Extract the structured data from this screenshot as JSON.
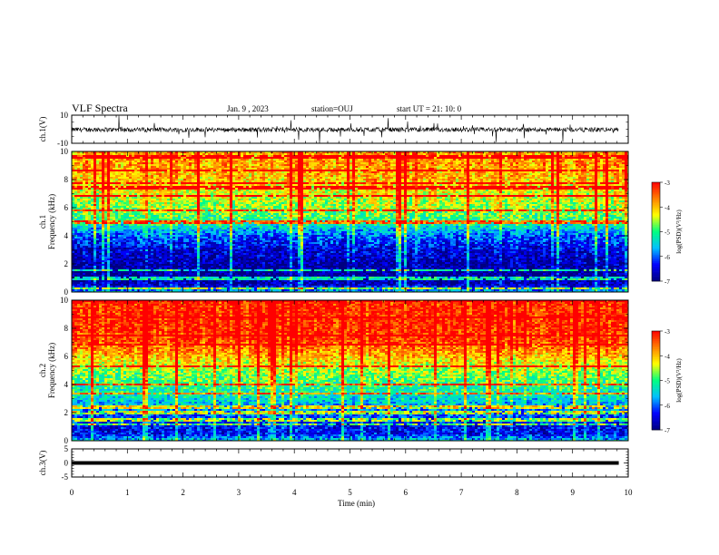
{
  "header": {
    "title": "VLF Spectra",
    "date": "Jan. 9 , 2023",
    "station": "station=OUJ",
    "start": "start UT = 21: 10: 0"
  },
  "colors": {
    "colormap": [
      "#000080",
      "#0000ff",
      "#00c0ff",
      "#00ff80",
      "#ffff00",
      "#ff8000",
      "#ff0000",
      "#ffffff"
    ],
    "waveform": "#000000",
    "frame": "#000000"
  },
  "chart_data": [
    {
      "type": "line",
      "name": "ch1-waveform",
      "ylabel": "ch.1(V)",
      "ylim": [
        -10,
        10
      ],
      "ytick_labels": [
        "10",
        "-10"
      ],
      "x_range_min": [
        0,
        9.83
      ],
      "baseline_volts": 0
    },
    {
      "type": "heatmap",
      "name": "ch1-spectrogram",
      "ylabel_channel": "ch.1",
      "ylabel": "Frequency (kHz)",
      "xlim": [
        0,
        10
      ],
      "ylim": [
        0,
        10
      ],
      "ytick_labels": [
        "0",
        "2",
        "4",
        "6",
        "8",
        "10"
      ],
      "color_scale": {
        "label": "log(PSD)(V²/Hz)",
        "min": -7,
        "max": -3,
        "tick_labels": [
          "-3",
          "-4",
          "-5",
          "-6",
          "-7"
        ]
      },
      "log_psd_profile_by_freq_khz": [
        {
          "f": 0,
          "v": -5.6
        },
        {
          "f": 0.5,
          "v": -6.6
        },
        {
          "f": 1,
          "v": -6.9
        },
        {
          "f": 2,
          "v": -6.8
        },
        {
          "f": 3,
          "v": -6.5
        },
        {
          "f": 4,
          "v": -6.0
        },
        {
          "f": 5,
          "v": -5.0
        },
        {
          "f": 6,
          "v": -4.6
        },
        {
          "f": 7,
          "v": -4.3
        },
        {
          "f": 8,
          "v": -4.0
        },
        {
          "f": 9,
          "v": -3.8
        },
        {
          "f": 10,
          "v": -3.8
        }
      ]
    },
    {
      "type": "heatmap",
      "name": "ch2-spectrogram",
      "ylabel_channel": "ch.2",
      "ylabel": "Frequency (kHz)",
      "xlim": [
        0,
        10
      ],
      "ylim": [
        0,
        10
      ],
      "ytick_labels": [
        "0",
        "2",
        "4",
        "6",
        "8",
        "10"
      ],
      "color_scale": {
        "label": "log(PSD)(V²/Hz)",
        "min": -7,
        "max": -3,
        "tick_labels": [
          "-3",
          "-4",
          "-5",
          "-6",
          "-7"
        ]
      },
      "log_psd_profile_by_freq_khz": [
        {
          "f": 0,
          "v": -5.5
        },
        {
          "f": 0.5,
          "v": -6.4
        },
        {
          "f": 1,
          "v": -6.4
        },
        {
          "f": 2,
          "v": -6.0
        },
        {
          "f": 3,
          "v": -5.4
        },
        {
          "f": 4,
          "v": -5.0
        },
        {
          "f": 5,
          "v": -4.6
        },
        {
          "f": 6,
          "v": -4.0
        },
        {
          "f": 7,
          "v": -3.4
        },
        {
          "f": 8,
          "v": -3.2
        },
        {
          "f": 9,
          "v": -3.2
        },
        {
          "f": 10,
          "v": -3.2
        }
      ]
    },
    {
      "type": "line",
      "name": "ch3-waveform",
      "ylabel": "ch.3(V)",
      "ylim": [
        -5,
        5
      ],
      "ytick_labels": [
        "5",
        "0",
        "-5"
      ],
      "x_range_min": [
        0,
        9.83
      ],
      "level_volts": 0
    }
  ],
  "xaxis": {
    "label": "Time (min)",
    "xlim": [
      0,
      10
    ],
    "tick_labels": [
      "0",
      "1",
      "2",
      "3",
      "4",
      "5",
      "6",
      "7",
      "8",
      "9",
      "10"
    ]
  }
}
